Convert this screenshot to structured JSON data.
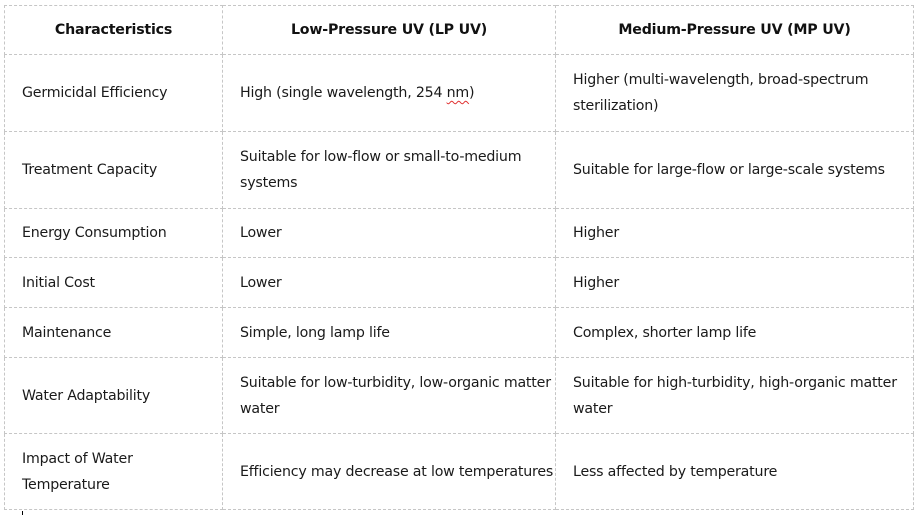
{
  "table": {
    "headers": [
      "Characteristics",
      "Low-Pressure UV (LP UV)",
      "Medium-Pressure UV (MP UV)"
    ],
    "rows": [
      {
        "characteristic": "Germicidal Efficiency",
        "lp_uv_prefix": "High (single wavelength, 254 ",
        "lp_uv_flagged": "nm",
        "lp_uv_suffix": ")",
        "mp_uv": "Higher (multi-wavelength, broad-spectrum sterilization)"
      },
      {
        "characteristic": "Treatment Capacity",
        "lp_uv": "Suitable for low-flow or small-to-medium systems",
        "mp_uv": "Suitable for large-flow or large-scale systems"
      },
      {
        "characteristic": "Energy Consumption",
        "lp_uv": "Lower",
        "mp_uv": "Higher"
      },
      {
        "characteristic": "Initial Cost",
        "lp_uv": "Lower",
        "mp_uv": "Higher"
      },
      {
        "characteristic": "Maintenance",
        "lp_uv": "Simple, long lamp life",
        "mp_uv": "Complex, shorter lamp life"
      },
      {
        "characteristic": "Water Adaptability",
        "lp_uv": "Suitable for low-turbidity, low-organic matter water",
        "mp_uv": "Suitable for high-turbidity, high-organic matter water"
      },
      {
        "characteristic": "Impact of Water Temperature",
        "lp_uv": "Efficiency may decrease at low temperatures",
        "mp_uv": "Less affected by temperature"
      }
    ]
  },
  "colors": {
    "border": "#c6c6c6",
    "text": "#1a1a1a",
    "spellcheck_underline": "#e03030"
  }
}
